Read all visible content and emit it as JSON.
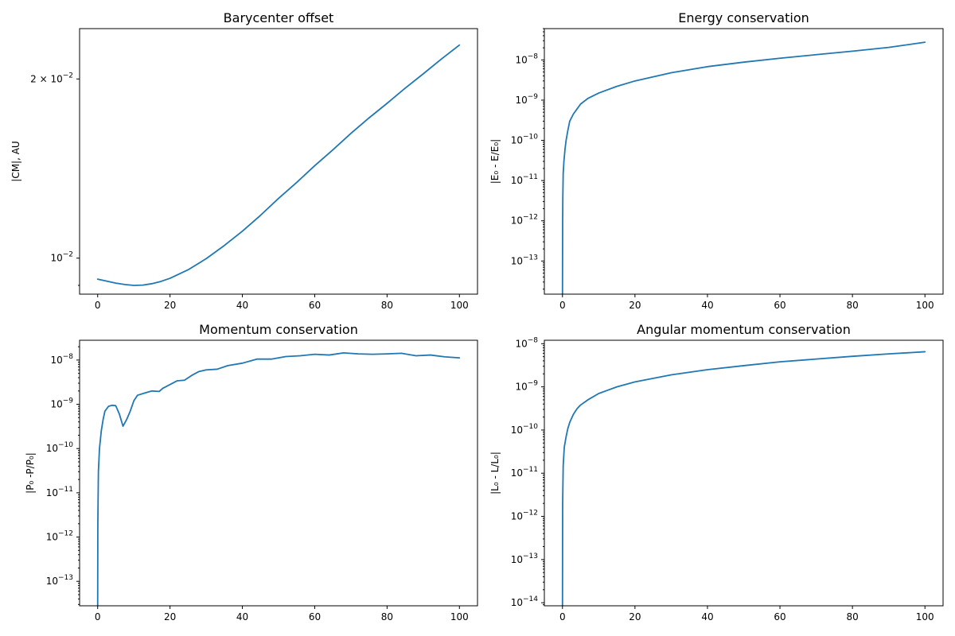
{
  "chart_data": [
    {
      "type": "line",
      "title": "Barycenter offset",
      "xlabel": "",
      "ylabel": "|CM|, AU",
      "yscale": "log",
      "xlim": [
        -5,
        105
      ],
      "ylim": [
        0.0087,
        0.0243
      ],
      "xticks": [
        0,
        20,
        40,
        60,
        80,
        100
      ],
      "xtick_labels": [
        "0",
        "20",
        "40",
        "60",
        "80",
        "100"
      ],
      "yticks": [
        0.01,
        0.02
      ],
      "ytick_labels": [
        [
          "10",
          "−2",
          ""
        ],
        [
          "2 × 10",
          "−2",
          ""
        ]
      ],
      "grid": false,
      "series": [
        {
          "color": "#1f77b4",
          "points": [
            [
              0,
              0.00922
            ],
            [
              2.5,
              0.00915
            ],
            [
              5,
              0.00908
            ],
            [
              7.5,
              0.00903
            ],
            [
              10,
              0.009
            ],
            [
              12.5,
              0.00901
            ],
            [
              15,
              0.00906
            ],
            [
              17.5,
              0.00914
            ],
            [
              20,
              0.00925
            ],
            [
              25,
              0.00956
            ],
            [
              30,
              0.00998
            ],
            [
              35,
              0.0105
            ],
            [
              40,
              0.0111
            ],
            [
              45,
              0.0118
            ],
            [
              50,
              0.0126
            ],
            [
              55,
              0.0134
            ],
            [
              60,
              0.0143
            ],
            [
              65,
              0.0152
            ],
            [
              70,
              0.0162
            ],
            [
              75,
              0.0172
            ],
            [
              80,
              0.0182
            ],
            [
              85,
              0.0193
            ],
            [
              90,
              0.0204
            ],
            [
              95,
              0.0216
            ],
            [
              100,
              0.0228
            ]
          ]
        }
      ]
    },
    {
      "type": "line",
      "title": "Energy conservation",
      "xlabel": "",
      "ylabel": "|E₀ - E/E₀|",
      "yscale": "log",
      "xlim": [
        -5,
        105
      ],
      "ylim": [
        1.5e-14,
        6e-08
      ],
      "xticks": [
        0,
        20,
        40,
        60,
        80,
        100
      ],
      "xtick_labels": [
        "0",
        "20",
        "40",
        "60",
        "80",
        "100"
      ],
      "yticks": [
        1e-13,
        1e-12,
        1e-11,
        1e-10,
        1e-09,
        1e-08
      ],
      "ytick_labels": [
        [
          "10",
          "−13",
          ""
        ],
        [
          "10",
          "−12",
          ""
        ],
        [
          "10",
          "−11",
          ""
        ],
        [
          "10",
          "−10",
          ""
        ],
        [
          "10",
          "−9",
          ""
        ],
        [
          "10",
          "−8",
          ""
        ]
      ],
      "grid": false,
      "series": [
        {
          "color": "#1f77b4",
          "points": [
            [
              0,
              1.5e-14
            ],
            [
              0.05,
              1e-12
            ],
            [
              0.1,
              4e-12
            ],
            [
              0.2,
              1.5e-11
            ],
            [
              0.4,
              3e-11
            ],
            [
              0.7,
              6e-11
            ],
            [
              1,
              1e-10
            ],
            [
              1.5,
              1.8e-10
            ],
            [
              2,
              3e-10
            ],
            [
              3,
              4.5e-10
            ],
            [
              4,
              6e-10
            ],
            [
              5,
              8e-10
            ],
            [
              7,
              1.1e-09
            ],
            [
              10,
              1.5e-09
            ],
            [
              15,
              2.2e-09
            ],
            [
              20,
              3e-09
            ],
            [
              30,
              4.8e-09
            ],
            [
              40,
              6.8e-09
            ],
            [
              50,
              8.8e-09
            ],
            [
              60,
              1.1e-08
            ],
            [
              70,
              1.35e-08
            ],
            [
              80,
              1.65e-08
            ],
            [
              90,
              2.05e-08
            ],
            [
              100,
              2.75e-08
            ]
          ]
        }
      ]
    },
    {
      "type": "line",
      "title": "Momentum conservation",
      "xlabel": "",
      "ylabel": "|P₀ -P/P₀|",
      "yscale": "log",
      "xlim": [
        -5,
        105
      ],
      "ylim": [
        2.8e-14,
        2.8e-08
      ],
      "xticks": [
        0,
        20,
        40,
        60,
        80,
        100
      ],
      "xtick_labels": [
        "0",
        "20",
        "40",
        "60",
        "80",
        "100"
      ],
      "yticks": [
        1e-13,
        1e-12,
        1e-11,
        1e-10,
        1e-09,
        1e-08
      ],
      "ytick_labels": [
        [
          "10",
          "−13",
          ""
        ],
        [
          "10",
          "−12",
          ""
        ],
        [
          "10",
          "−11",
          ""
        ],
        [
          "10",
          "−10",
          ""
        ],
        [
          "10",
          "−9",
          ""
        ],
        [
          "10",
          "−8",
          ""
        ]
      ],
      "grid": false,
      "series": [
        {
          "color": "#1f77b4",
          "points": [
            [
              0,
              2.8e-14
            ],
            [
              0.05,
              2e-12
            ],
            [
              0.2,
              3e-11
            ],
            [
              0.5,
              1e-10
            ],
            [
              1,
              2.5e-10
            ],
            [
              1.5,
              4.5e-10
            ],
            [
              2,
              7e-10
            ],
            [
              3,
              9e-10
            ],
            [
              4,
              9.5e-10
            ],
            [
              5,
              9.3e-10
            ],
            [
              6,
              6e-10
            ],
            [
              7,
              3.2e-10
            ],
            [
              8,
              4.5e-10
            ],
            [
              9,
              7e-10
            ],
            [
              10,
              1.2e-09
            ],
            [
              11,
              1.6e-09
            ],
            [
              13,
              1.8e-09
            ],
            [
              15,
              2e-09
            ],
            [
              17,
              1.95e-09
            ],
            [
              18,
              2.3e-09
            ],
            [
              20,
              2.8e-09
            ],
            [
              22,
              3.4e-09
            ],
            [
              24,
              3.5e-09
            ],
            [
              26,
              4.5e-09
            ],
            [
              28,
              5.5e-09
            ],
            [
              30,
              6e-09
            ],
            [
              33,
              6.2e-09
            ],
            [
              36,
              7.5e-09
            ],
            [
              40,
              8.5e-09
            ],
            [
              44,
              1.05e-08
            ],
            [
              48,
              1.05e-08
            ],
            [
              52,
              1.2e-08
            ],
            [
              56,
              1.25e-08
            ],
            [
              60,
              1.35e-08
            ],
            [
              64,
              1.3e-08
            ],
            [
              68,
              1.45e-08
            ],
            [
              72,
              1.38e-08
            ],
            [
              76,
              1.35e-08
            ],
            [
              80,
              1.38e-08
            ],
            [
              84,
              1.42e-08
            ],
            [
              88,
              1.25e-08
            ],
            [
              92,
              1.3e-08
            ],
            [
              96,
              1.18e-08
            ],
            [
              100,
              1.12e-08
            ]
          ]
        }
      ]
    },
    {
      "type": "line",
      "title": "Angular momentum conservation",
      "xlabel": "",
      "ylabel": "|L₀ - L/L₀|",
      "yscale": "log",
      "xlim": [
        -5,
        105
      ],
      "ylim": [
        8.5e-15,
        1.2e-08
      ],
      "xticks": [
        0,
        20,
        40,
        60,
        80,
        100
      ],
      "xtick_labels": [
        "0",
        "20",
        "40",
        "60",
        "80",
        "100"
      ],
      "yticks": [
        1e-14,
        1e-13,
        1e-12,
        1e-11,
        1e-10,
        1e-09,
        1e-08
      ],
      "ytick_labels": [
        [
          "10",
          "−14",
          ""
        ],
        [
          "10",
          "−13",
          ""
        ],
        [
          "10",
          "−12",
          ""
        ],
        [
          "10",
          "−11",
          ""
        ],
        [
          "10",
          "−10",
          ""
        ],
        [
          "10",
          "−9",
          ""
        ],
        [
          "10",
          "−8",
          ""
        ]
      ],
      "grid": false,
      "series": [
        {
          "color": "#1f77b4",
          "points": [
            [
              0,
              8.5e-15
            ],
            [
              0.05,
              2e-12
            ],
            [
              0.2,
              1.5e-11
            ],
            [
              0.5,
              4e-11
            ],
            [
              1,
              7e-11
            ],
            [
              1.5,
              1.1e-10
            ],
            [
              2,
              1.5e-10
            ],
            [
              3,
              2.3e-10
            ],
            [
              4,
              3.1e-10
            ],
            [
              5,
              3.8e-10
            ],
            [
              7,
              5e-10
            ],
            [
              10,
              7e-10
            ],
            [
              15,
              1e-09
            ],
            [
              20,
              1.3e-09
            ],
            [
              30,
              1.9e-09
            ],
            [
              40,
              2.5e-09
            ],
            [
              50,
              3.1e-09
            ],
            [
              60,
              3.8e-09
            ],
            [
              70,
              4.4e-09
            ],
            [
              80,
              5.1e-09
            ],
            [
              90,
              5.8e-09
            ],
            [
              100,
              6.5e-09
            ]
          ]
        }
      ]
    }
  ]
}
